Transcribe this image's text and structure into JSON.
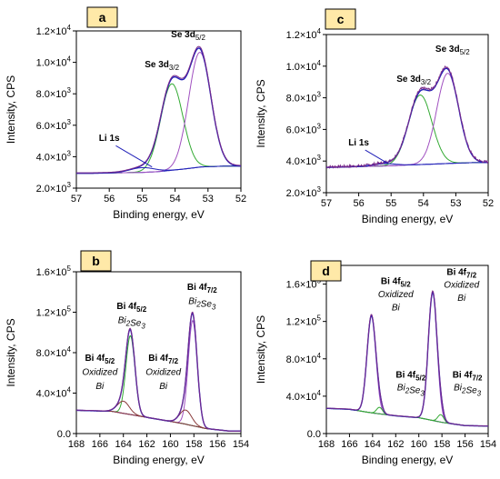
{
  "colors": {
    "measured": "#7a2a8a",
    "envelope": "#2020b8",
    "fit_green": "#33aa33",
    "fit_violet": "#a050c0",
    "fit_brown": "#8a3a3a",
    "label_box": "#ffe9a8"
  },
  "chart_data": [
    {
      "id": "a",
      "panel_label": "a",
      "type": "line",
      "xlabel": "Binding energy, eV",
      "ylabel": "Intensity, CPS",
      "xlim": [
        57,
        52
      ],
      "ylim": [
        2000,
        12000
      ],
      "x_reversed": true,
      "x_ticks": [
        57,
        56,
        55,
        54,
        53,
        52
      ],
      "x_tick_labels": [
        "57",
        "56",
        "55",
        "54",
        "53",
        "52"
      ],
      "y_ticks": [
        2000,
        4000,
        6000,
        8000,
        10000,
        12000
      ],
      "y_tick_labels": [
        [
          "2.0×10",
          "3"
        ],
        [
          "4.0×10",
          "3"
        ],
        [
          "6.0×10",
          "3"
        ],
        [
          "8.0×10",
          "3"
        ],
        [
          "1.0×10",
          "4"
        ],
        [
          "1.2×10",
          "4"
        ]
      ],
      "background": [
        [
          57,
          2950
        ],
        [
          56.5,
          2950
        ],
        [
          55,
          3000
        ],
        [
          54.5,
          3050
        ],
        [
          53.8,
          3200
        ],
        [
          53.2,
          3350
        ],
        [
          52.5,
          3400
        ],
        [
          52,
          3400
        ]
      ],
      "peaks": [
        {
          "center": 54.1,
          "amplitude": 5500,
          "fwhm": 0.8,
          "color": "fit_green"
        },
        {
          "center": 53.25,
          "amplitude": 7300,
          "fwhm": 0.8,
          "color": "fit_violet"
        },
        {
          "center": 55.0,
          "amplitude": 300,
          "fwhm": 0.9,
          "color": "envelope"
        }
      ],
      "noise": 0,
      "annotations": [
        {
          "parts": [
            [
              "Se 3d",
              ""
            ],
            [
              "5/2",
              "sub"
            ]
          ],
          "x": 53.6,
          "y": 11600
        },
        {
          "parts": [
            [
              "Se 3d",
              ""
            ],
            [
              "3/2",
              "sub"
            ]
          ],
          "x": 54.4,
          "y": 9700
        },
        {
          "parts": [
            [
              "Li 1s",
              ""
            ]
          ],
          "x": 56.0,
          "y": 5000
        }
      ],
      "leader": [
        [
          55.8,
          4700
        ],
        [
          54.7,
          3350
        ]
      ]
    },
    {
      "id": "c",
      "panel_label": "c",
      "type": "line",
      "xlabel": "Binding energy, eV",
      "ylabel": "Intensity, CPS",
      "xlim": [
        57,
        52
      ],
      "ylim": [
        2000,
        12000
      ],
      "x_reversed": true,
      "x_ticks": [
        57,
        56,
        55,
        54,
        53,
        52
      ],
      "x_tick_labels": [
        "57",
        "56",
        "55",
        "54",
        "53",
        "52"
      ],
      "y_ticks": [
        2000,
        4000,
        6000,
        8000,
        10000,
        12000
      ],
      "y_tick_labels": [
        [
          "2.0×10",
          "3"
        ],
        [
          "4.0×10",
          "3"
        ],
        [
          "6.0×10",
          "3"
        ],
        [
          "8.0×10",
          "3"
        ],
        [
          "1.0×10",
          "4"
        ],
        [
          "1.2×10",
          "4"
        ]
      ],
      "background": [
        [
          57,
          3600
        ],
        [
          56,
          3650
        ],
        [
          55,
          3700
        ],
        [
          54.5,
          3750
        ],
        [
          53.8,
          3800
        ],
        [
          53.2,
          3850
        ],
        [
          52.5,
          3900
        ],
        [
          52,
          3900
        ]
      ],
      "peaks": [
        {
          "center": 54.1,
          "amplitude": 4400,
          "fwhm": 0.85,
          "color": "fit_green"
        },
        {
          "center": 53.25,
          "amplitude": 5700,
          "fwhm": 0.8,
          "color": "fit_violet"
        },
        {
          "center": 55.2,
          "amplitude": 150,
          "fwhm": 0.8,
          "color": "envelope"
        }
      ],
      "noise": 80,
      "annotations": [
        {
          "parts": [
            [
              "Se 3d",
              ""
            ],
            [
              "5/2",
              "sub"
            ]
          ],
          "x": 53.1,
          "y": 10900
        },
        {
          "parts": [
            [
              "Se 3d",
              ""
            ],
            [
              "3/2",
              "sub"
            ]
          ],
          "x": 54.3,
          "y": 9000
        },
        {
          "parts": [
            [
              "Li 1s",
              ""
            ]
          ],
          "x": 56.0,
          "y": 5000
        }
      ],
      "leader": [
        [
          55.8,
          4700
        ],
        [
          55.1,
          3850
        ]
      ]
    },
    {
      "id": "b",
      "panel_label": "b",
      "type": "line",
      "xlabel": "Binding energy, eV",
      "ylabel": "Intensity, CPS",
      "xlim": [
        168,
        154
      ],
      "ylim": [
        0,
        160000
      ],
      "x_reversed": true,
      "x_ticks": [
        168,
        166,
        164,
        162,
        160,
        158,
        156,
        154
      ],
      "x_tick_labels": [
        "168",
        "166",
        "164",
        "162",
        "160",
        "158",
        "156",
        "154"
      ],
      "y_ticks": [
        0,
        40000,
        80000,
        120000,
        160000
      ],
      "y_tick_labels": [
        [
          "0.0",
          ""
        ],
        [
          "4.0×10",
          "4"
        ],
        [
          "8.0×10",
          "4"
        ],
        [
          "1.2×10",
          "5"
        ],
        [
          "1.6×10",
          "5"
        ]
      ],
      "background": [
        [
          168,
          23000
        ],
        [
          165,
          22000
        ],
        [
          163,
          18000
        ],
        [
          161,
          14000
        ],
        [
          159,
          10000
        ],
        [
          157,
          5000
        ],
        [
          155,
          2500
        ],
        [
          154,
          2500
        ]
      ],
      "peaks": [
        {
          "center": 163.4,
          "amplitude": 78000,
          "fwhm": 0.9,
          "color": "fit_green"
        },
        {
          "center": 158.1,
          "amplitude": 104000,
          "fwhm": 0.9,
          "color": "fit_violet"
        },
        {
          "center": 164.0,
          "amplitude": 12000,
          "fwhm": 1.2,
          "color": "fit_brown"
        },
        {
          "center": 158.7,
          "amplitude": 14000,
          "fwhm": 1.2,
          "color": "fit_brown"
        }
      ],
      "noise": 0,
      "annotations": [
        {
          "parts": [
            [
              "Bi 4f",
              "b"
            ],
            [
              "7/2",
              "bsub"
            ]
          ],
          "x": 157.3,
          "y": 142000
        },
        {
          "parts": [
            [
              "Bi",
              "i"
            ],
            [
              "2",
              "isub"
            ],
            [
              "Se",
              "i"
            ],
            [
              "3",
              "isub"
            ]
          ],
          "x": 157.3,
          "y": 128000
        },
        {
          "parts": [
            [
              "Bi 4f",
              "b"
            ],
            [
              "5/2",
              "bsub"
            ]
          ],
          "x": 163.3,
          "y": 123000
        },
        {
          "parts": [
            [
              "Bi",
              "i"
            ],
            [
              "2",
              "isub"
            ],
            [
              "Se",
              "i"
            ],
            [
              "3",
              "isub"
            ]
          ],
          "x": 163.3,
          "y": 109000
        },
        {
          "parts": [
            [
              "Bi 4f",
              "b"
            ],
            [
              "5/2",
              "bsub"
            ]
          ],
          "x": 166.0,
          "y": 72000
        },
        {
          "parts": [
            [
              "Oxidized",
              "i"
            ]
          ],
          "x": 166.0,
          "y": 58000
        },
        {
          "parts": [
            [
              "Bi",
              "i"
            ]
          ],
          "x": 166.0,
          "y": 44000
        },
        {
          "parts": [
            [
              "Bi 4f",
              "b"
            ],
            [
              "7/2",
              "bsub"
            ]
          ],
          "x": 160.6,
          "y": 72000
        },
        {
          "parts": [
            [
              "Oxidized",
              "i"
            ]
          ],
          "x": 160.6,
          "y": 58000
        },
        {
          "parts": [
            [
              "Bi",
              "i"
            ]
          ],
          "x": 160.6,
          "y": 44000
        }
      ]
    },
    {
      "id": "d",
      "panel_label": "d",
      "type": "line",
      "xlabel": "Binding energy, eV",
      "ylabel": "Intensity, CPS",
      "xlim": [
        168,
        154
      ],
      "ylim": [
        0,
        180000
      ],
      "x_reversed": true,
      "x_ticks": [
        168,
        166,
        164,
        162,
        160,
        158,
        156,
        154
      ],
      "x_tick_labels": [
        "168",
        "166",
        "164",
        "162",
        "160",
        "158",
        "156",
        "154"
      ],
      "y_ticks": [
        0,
        40000,
        80000,
        120000,
        160000
      ],
      "y_tick_labels": [
        [
          "0.0",
          ""
        ],
        [
          "4.0×10",
          "4"
        ],
        [
          "8.0×10",
          "4"
        ],
        [
          "1.2×10",
          "5"
        ],
        [
          "1.6×10",
          "5"
        ]
      ],
      "background": [
        [
          168,
          27000
        ],
        [
          166,
          26000
        ],
        [
          164,
          22000
        ],
        [
          162,
          19000
        ],
        [
          160,
          17000
        ],
        [
          158,
          12000
        ],
        [
          156,
          8500
        ],
        [
          154,
          8000
        ]
      ],
      "peaks": [
        {
          "center": 164.1,
          "amplitude": 104000,
          "fwhm": 0.9,
          "color": "fit_violet"
        },
        {
          "center": 158.8,
          "amplitude": 137000,
          "fwhm": 0.9,
          "color": "fit_violet"
        },
        {
          "center": 163.4,
          "amplitude": 7000,
          "fwhm": 0.6,
          "color": "fit_green"
        },
        {
          "center": 158.1,
          "amplitude": 8000,
          "fwhm": 0.6,
          "color": "fit_green"
        }
      ],
      "noise": 0,
      "annotations": [
        {
          "parts": [
            [
              "Bi 4f",
              "b"
            ],
            [
              "5/2",
              "bsub"
            ]
          ],
          "x": 162.0,
          "y": 160000
        },
        {
          "parts": [
            [
              "Oxidized",
              "i"
            ]
          ],
          "x": 162.0,
          "y": 146000
        },
        {
          "parts": [
            [
              "Bi",
              "i"
            ]
          ],
          "x": 162.0,
          "y": 132000
        },
        {
          "parts": [
            [
              "Bi 4f",
              "b"
            ],
            [
              "7/2",
              "bsub"
            ]
          ],
          "x": 156.3,
          "y": 170000
        },
        {
          "parts": [
            [
              "Oxidized",
              "i"
            ]
          ],
          "x": 156.3,
          "y": 156000
        },
        {
          "parts": [
            [
              "Bi",
              "i"
            ]
          ],
          "x": 156.3,
          "y": 142000
        },
        {
          "parts": [
            [
              "Bi 4f",
              "b"
            ],
            [
              "5/2",
              "bsub"
            ]
          ],
          "x": 160.7,
          "y": 60000
        },
        {
          "parts": [
            [
              "Bi",
              "i"
            ],
            [
              "2",
              "isub"
            ],
            [
              "Se",
              "i"
            ],
            [
              "3",
              "isub"
            ]
          ],
          "x": 160.7,
          "y": 46000
        },
        {
          "parts": [
            [
              "Bi 4f",
              "b"
            ],
            [
              "7/2",
              "bsub"
            ]
          ],
          "x": 155.8,
          "y": 60000
        },
        {
          "parts": [
            [
              "Bi",
              "i"
            ],
            [
              "2",
              "isub"
            ],
            [
              "Se",
              "i"
            ],
            [
              "3",
              "isub"
            ]
          ],
          "x": 155.8,
          "y": 46000
        }
      ]
    }
  ]
}
